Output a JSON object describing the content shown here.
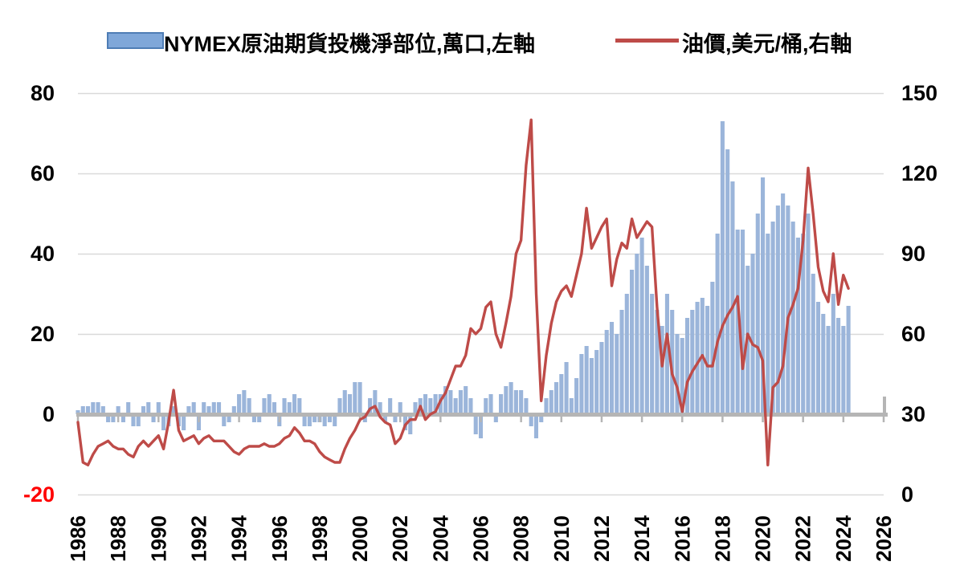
{
  "chart_data": {
    "type": "combo",
    "title": "",
    "legend_position": "top",
    "x_axis": {
      "tick_years": [
        1986,
        1988,
        1990,
        1992,
        1994,
        1996,
        1998,
        2000,
        2002,
        2004,
        2006,
        2008,
        2010,
        2012,
        2014,
        2016,
        2018,
        2020,
        2022,
        2024,
        2026
      ]
    },
    "left_axis": {
      "ticks": [
        80,
        60,
        40,
        20,
        0,
        -20
      ],
      "range": [
        -20,
        80
      ],
      "label_color": "#000000",
      "negative_label_color": "#FF0000"
    },
    "right_axis": {
      "ticks": [
        150,
        120,
        90,
        60,
        30,
        0
      ],
      "range": [
        0,
        150
      ],
      "label_color": "#000000"
    },
    "grid": true,
    "colors": {
      "gridline": "#D9D9D9",
      "axis_line": "#B5B5B5",
      "background": "#FFFFFF"
    },
    "series": [
      {
        "name": "NYMEX原油期貨投機淨部位,萬口,左軸",
        "type": "bar",
        "axis": "left",
        "color": "#9BB5DA",
        "legend_fill": "#7FA7D9",
        "legend_border": "#4E7DB5",
        "x_start": 1986,
        "x_step": 0.25,
        "values": [
          1,
          2,
          2,
          3,
          3,
          2,
          -2,
          -2,
          2,
          -2,
          3,
          -3,
          -3,
          2,
          3,
          -2,
          3,
          -4,
          -3,
          2,
          -3,
          -4,
          2,
          3,
          -4,
          3,
          2,
          3,
          3,
          -3,
          -2,
          2,
          5,
          6,
          4,
          -2,
          -2,
          4,
          5,
          3,
          -3,
          4,
          3,
          5,
          4,
          -3,
          -3,
          -2,
          -2,
          -3,
          -2,
          -3,
          4,
          6,
          5,
          8,
          8,
          -2,
          4,
          6,
          3,
          -2,
          4,
          -2,
          3,
          -4,
          -5,
          3,
          4,
          5,
          4,
          5,
          5,
          7,
          6,
          4,
          6,
          7,
          4,
          -5,
          -6,
          4,
          5,
          -2,
          5,
          7,
          8,
          6,
          6,
          4,
          -3,
          -6,
          -2,
          4,
          6,
          8,
          10,
          13,
          4,
          9,
          15,
          17,
          14,
          16,
          18,
          21,
          23,
          20,
          26,
          30,
          36,
          40,
          44,
          37,
          30,
          26,
          22,
          30,
          26,
          20,
          19,
          24,
          26,
          28,
          29,
          27,
          33,
          45,
          73,
          66,
          58,
          46,
          46,
          37,
          40,
          50,
          59,
          45,
          48,
          52,
          55,
          52,
          48,
          44,
          45,
          50,
          35,
          28,
          25,
          22,
          30,
          24,
          22,
          27
        ]
      },
      {
        "name": "油價,美元/桶,右軸",
        "type": "line",
        "axis": "right",
        "color": "#BE4B48",
        "x_start": 1986,
        "x_step": 0.25,
        "values": [
          27,
          12,
          11,
          15,
          18,
          19,
          20,
          18,
          17,
          17,
          15,
          14,
          18,
          20,
          18,
          20,
          22,
          17,
          27,
          39,
          24,
          20,
          21,
          22,
          19,
          21,
          22,
          20,
          20,
          20,
          18,
          16,
          15,
          17,
          18,
          18,
          18,
          19,
          18,
          18,
          19,
          21,
          22,
          25,
          23,
          20,
          20,
          19,
          16,
          14,
          13,
          12,
          12,
          17,
          21,
          24,
          28,
          29,
          32,
          33,
          29,
          27,
          26,
          19,
          21,
          26,
          28,
          28,
          33,
          28,
          30,
          31,
          35,
          38,
          43,
          48,
          48,
          52,
          62,
          60,
          62,
          70,
          72,
          60,
          55,
          64,
          74,
          90,
          95,
          123,
          140,
          75,
          35,
          52,
          64,
          72,
          76,
          78,
          74,
          82,
          90,
          107,
          92,
          96,
          100,
          103,
          78,
          88,
          94,
          92,
          103,
          96,
          99,
          102,
          100,
          70,
          48,
          60,
          45,
          40,
          31,
          42,
          46,
          49,
          52,
          48,
          48,
          57,
          63,
          67,
          70,
          74,
          47,
          60,
          56,
          55,
          50,
          11,
          40,
          42,
          48,
          66,
          71,
          77,
          95,
          122,
          105,
          85,
          76,
          72,
          90,
          71,
          82,
          77
        ]
      }
    ]
  }
}
